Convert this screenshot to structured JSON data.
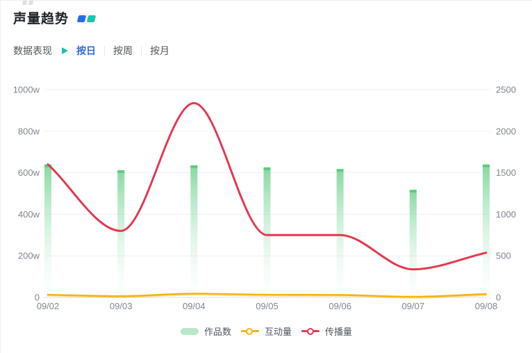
{
  "header": {
    "title": "声量趋势"
  },
  "filters": {
    "label": "数据表现",
    "tabs": [
      {
        "label": "按日",
        "active": true
      },
      {
        "label": "按周",
        "active": false
      },
      {
        "label": "按月",
        "active": false
      }
    ]
  },
  "colors": {
    "accent_blue": "#2c6ae6",
    "accent_teal": "#19c3ae",
    "bar_green": "#57ce7d",
    "bar_green_light": "#b9e8c8",
    "line_yellow": "#f5b40e",
    "line_red": "#e23950",
    "axis_text": "#7e858e",
    "grid_line": "#eef1f5",
    "axis_line": "#dfe2e7"
  },
  "chart_data": {
    "type": "combo",
    "title": "声量趋势",
    "categories": [
      "09/02",
      "09/03",
      "09/04",
      "09/05",
      "09/06",
      "09/07",
      "09/08"
    ],
    "series": [
      {
        "name": "作品数",
        "type": "bar",
        "axis": "right",
        "values": [
          1600,
          1530,
          1590,
          1565,
          1545,
          1295,
          1600
        ]
      },
      {
        "name": "互动量",
        "type": "line",
        "axis": "left",
        "unit": "w",
        "values": [
          13,
          6,
          18,
          13,
          12,
          3,
          16
        ]
      },
      {
        "name": "传播量",
        "type": "line",
        "axis": "left",
        "unit": "w",
        "values": [
          640,
          320,
          935,
          300,
          300,
          135,
          215
        ]
      }
    ],
    "left_axis": {
      "tick_labels": [
        "0",
        "200w",
        "400w",
        "600w",
        "800w",
        "1000w"
      ],
      "tick_values": [
        0,
        200,
        400,
        600,
        800,
        1000
      ],
      "max": 1000
    },
    "right_axis": {
      "tick_labels": [
        "0",
        "500",
        "1000",
        "1500",
        "2000",
        "2500"
      ],
      "tick_values": [
        0,
        500,
        1000,
        1500,
        2000,
        2500
      ],
      "max": 2500
    },
    "legend": [
      "作品数",
      "互动量",
      "传播量"
    ],
    "legend_position": "bottom",
    "grid": true
  }
}
